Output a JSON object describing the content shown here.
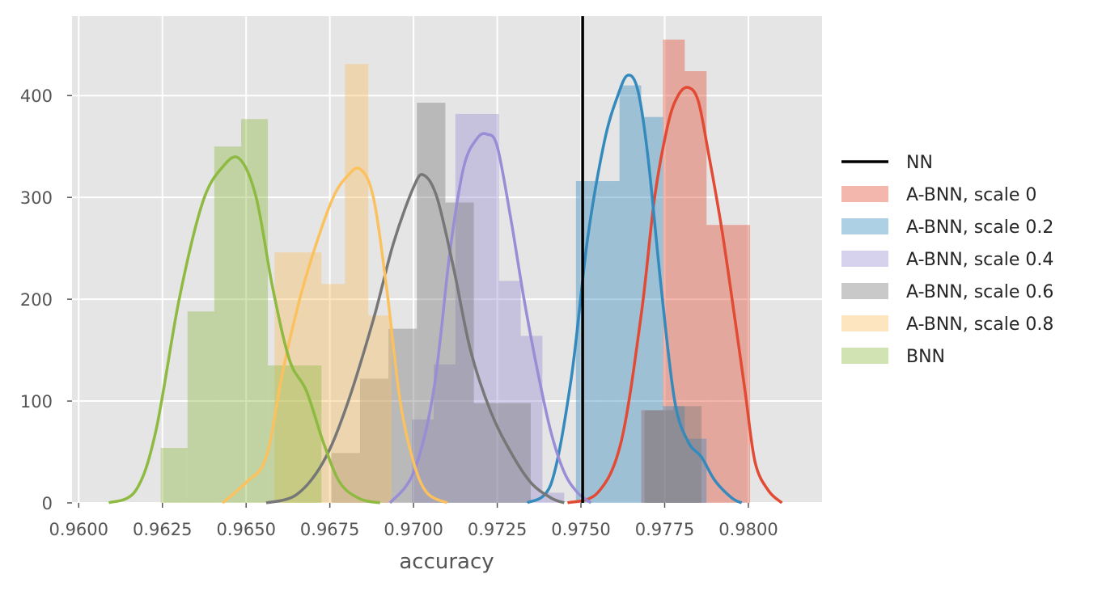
{
  "chart_data": {
    "type": "histogram+kde",
    "xlabel": "accuracy",
    "ylabel": "",
    "xlim": [
      0.9598,
      0.9822
    ],
    "ylim": [
      0,
      478
    ],
    "x_ticks": [
      "0.9600",
      "0.9625",
      "0.9650",
      "0.9675",
      "0.9700",
      "0.9725",
      "0.9750",
      "0.9775",
      "0.9800"
    ],
    "x_tick_values": [
      0.96,
      0.9625,
      0.965,
      0.9675,
      0.97,
      0.9725,
      0.975,
      0.9775,
      0.98
    ],
    "y_ticks": [
      "0",
      "100",
      "200",
      "300",
      "400"
    ],
    "y_tick_values": [
      0,
      100,
      200,
      300,
      400
    ],
    "grid": true,
    "legend_position": "right",
    "reference_line": {
      "name": "NN",
      "x": 0.97505,
      "color": "#000000"
    },
    "series": [
      {
        "name": "A-BNN, scale 0",
        "color": "#E24A33",
        "bin_edges": [
          0.9768,
          0.97745,
          0.9781,
          0.97875,
          0.9794,
          0.98005
        ],
        "counts": [
          91,
          455,
          424,
          273,
          273
        ],
        "kde_x": [
          0.9746,
          0.9755,
          0.9762,
          0.9768,
          0.9772,
          0.9776,
          0.9779,
          0.9782,
          0.9785,
          0.9788,
          0.9792,
          0.9796,
          0.9799,
          0.9802,
          0.9806,
          0.981
        ],
        "kde_y": [
          0,
          10,
          60,
          185,
          300,
          372,
          400,
          408,
          395,
          345,
          270,
          180,
          110,
          40,
          12,
          0
        ]
      },
      {
        "name": "A-BNN, scale 0.2",
        "color": "#348ABD",
        "bin_edges": [
          0.97485,
          0.9755,
          0.97615,
          0.9768,
          0.97745,
          0.9781,
          0.97875
        ],
        "counts": [
          316,
          316,
          410,
          379,
          95,
          63
        ],
        "kde_x": [
          0.9734,
          0.9741,
          0.9747,
          0.9752,
          0.9757,
          0.9761,
          0.9764,
          0.9767,
          0.977,
          0.9774,
          0.9778,
          0.9782,
          0.9786,
          0.979,
          0.9795,
          0.9798
        ],
        "kde_y": [
          0,
          18,
          120,
          260,
          355,
          400,
          420,
          405,
          340,
          210,
          100,
          60,
          45,
          22,
          5,
          0
        ]
      },
      {
        "name": "A-BNN, scale 0.4",
        "color": "#988ED5",
        "bin_edges": [
          0.96995,
          0.9706,
          0.97125,
          0.9719,
          0.97255,
          0.9732,
          0.97385,
          0.9745
        ],
        "counts": [
          82,
          136,
          382,
          382,
          218,
          164,
          10
        ],
        "kde_x": [
          0.9693,
          0.97,
          0.9706,
          0.9711,
          0.9715,
          0.9719,
          0.9722,
          0.9725,
          0.9729,
          0.9733,
          0.9737,
          0.9741,
          0.9745,
          0.9749,
          0.9753
        ],
        "kde_y": [
          0,
          30,
          110,
          250,
          330,
          358,
          362,
          350,
          280,
          200,
          130,
          70,
          30,
          10,
          0
        ]
      },
      {
        "name": "A-BNN, scale 0.6",
        "color": "#777777",
        "bin_edges": [
          0.96755,
          0.9684,
          0.96925,
          0.9701,
          0.97095,
          0.9718,
          0.97265,
          0.9735,
          0.97435,
          0.9752,
          0.97605,
          0.9769,
          0.97775,
          0.9786
        ],
        "counts": [
          49,
          122,
          171,
          393,
          295,
          98,
          98,
          0,
          0,
          0,
          0,
          91,
          95,
          63
        ],
        "kde_x": [
          0.9656,
          0.9665,
          0.9673,
          0.968,
          0.9688,
          0.9694,
          0.97,
          0.9703,
          0.9707,
          0.9712,
          0.9717,
          0.9723,
          0.9729,
          0.9735,
          0.9741,
          0.9745
        ],
        "kde_y": [
          0,
          8,
          40,
          95,
          180,
          255,
          310,
          322,
          300,
          230,
          150,
          90,
          50,
          20,
          5,
          0
        ]
      },
      {
        "name": "A-BNN, scale 0.8",
        "color": "#FBC15E",
        "bin_edges": [
          0.96585,
          0.96655,
          0.96725,
          0.96795,
          0.96865,
          0.96935
        ],
        "counts": [
          246,
          246,
          215,
          431,
          184
        ],
        "kde_x": [
          0.9643,
          0.965,
          0.9656,
          0.9661,
          0.9666,
          0.9671,
          0.9676,
          0.968,
          0.9684,
          0.9688,
          0.9692,
          0.9696,
          0.97,
          0.9704,
          0.971
        ],
        "kde_y": [
          0,
          20,
          45,
          130,
          200,
          255,
          300,
          320,
          328,
          300,
          210,
          100,
          40,
          10,
          0
        ]
      },
      {
        "name": "BNN",
        "color": "#8EBA42",
        "bin_edges": [
          0.96245,
          0.96325,
          0.96405,
          0.96485,
          0.96565,
          0.96645,
          0.96725
        ],
        "counts": [
          54,
          188,
          350,
          377,
          135,
          135
        ],
        "kde_x": [
          0.9609,
          0.9617,
          0.9623,
          0.963,
          0.9637,
          0.9643,
          0.9648,
          0.9653,
          0.9658,
          0.9663,
          0.9668,
          0.9673,
          0.9678,
          0.9684,
          0.969
        ],
        "kde_y": [
          0,
          12,
          70,
          200,
          295,
          330,
          338,
          300,
          210,
          140,
          110,
          60,
          20,
          4,
          0
        ]
      }
    ]
  }
}
